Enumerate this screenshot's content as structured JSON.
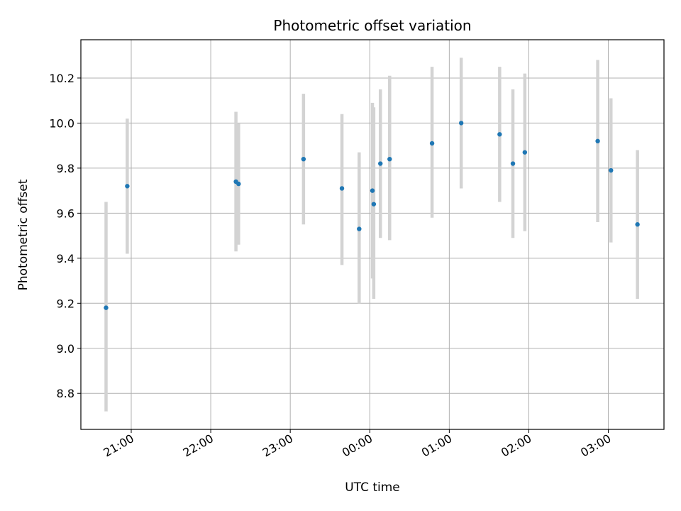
{
  "chart_data": {
    "type": "scatter",
    "title": "Photometric offset variation",
    "xlabel": "UTC time",
    "ylabel": "Photometric offset",
    "x_tick_labels": [
      "21:00",
      "22:00",
      "23:00",
      "00:00",
      "01:00",
      "02:00",
      "03:00"
    ],
    "y_tick_labels": [
      "8.8",
      "9.0",
      "9.2",
      "9.4",
      "9.6",
      "9.8",
      "10.0",
      "10.2"
    ],
    "ylim": [
      8.64,
      10.37
    ],
    "xlim": [
      "20:22",
      "03:42"
    ],
    "grid": true,
    "point_color": "#1f77b4",
    "errorbar_color": "#d3d3d3",
    "points": [
      {
        "x": "20:41",
        "y": 9.18,
        "yerr_low": 8.72,
        "yerr_high": 9.65
      },
      {
        "x": "20:57",
        "y": 9.72,
        "yerr_low": 9.42,
        "yerr_high": 10.02
      },
      {
        "x": "22:19",
        "y": 9.74,
        "yerr_low": 9.43,
        "yerr_high": 10.05
      },
      {
        "x": "22:21",
        "y": 9.73,
        "yerr_low": 9.46,
        "yerr_high": 10.0
      },
      {
        "x": "23:10",
        "y": 9.84,
        "yerr_low": 9.55,
        "yerr_high": 10.13
      },
      {
        "x": "23:39",
        "y": 9.71,
        "yerr_low": 9.37,
        "yerr_high": 10.04
      },
      {
        "x": "23:52",
        "y": 9.53,
        "yerr_low": 9.2,
        "yerr_high": 9.87
      },
      {
        "x": "00:02",
        "y": 9.7,
        "yerr_low": 9.31,
        "yerr_high": 10.09
      },
      {
        "x": "00:03",
        "y": 9.64,
        "yerr_low": 9.22,
        "yerr_high": 10.07
      },
      {
        "x": "00:08",
        "y": 9.82,
        "yerr_low": 9.49,
        "yerr_high": 10.15
      },
      {
        "x": "00:15",
        "y": 9.84,
        "yerr_low": 9.48,
        "yerr_high": 10.21
      },
      {
        "x": "00:47",
        "y": 9.91,
        "yerr_low": 9.58,
        "yerr_high": 10.25
      },
      {
        "x": "01:09",
        "y": 10.0,
        "yerr_low": 9.71,
        "yerr_high": 10.29
      },
      {
        "x": "01:38",
        "y": 9.95,
        "yerr_low": 9.65,
        "yerr_high": 10.25
      },
      {
        "x": "01:48",
        "y": 9.82,
        "yerr_low": 9.49,
        "yerr_high": 10.15
      },
      {
        "x": "01:57",
        "y": 9.87,
        "yerr_low": 9.52,
        "yerr_high": 10.22
      },
      {
        "x": "02:52",
        "y": 9.92,
        "yerr_low": 9.56,
        "yerr_high": 10.28
      },
      {
        "x": "03:02",
        "y": 9.79,
        "yerr_low": 9.47,
        "yerr_high": 10.11
      },
      {
        "x": "03:22",
        "y": 9.55,
        "yerr_low": 9.22,
        "yerr_high": 9.88
      }
    ]
  }
}
